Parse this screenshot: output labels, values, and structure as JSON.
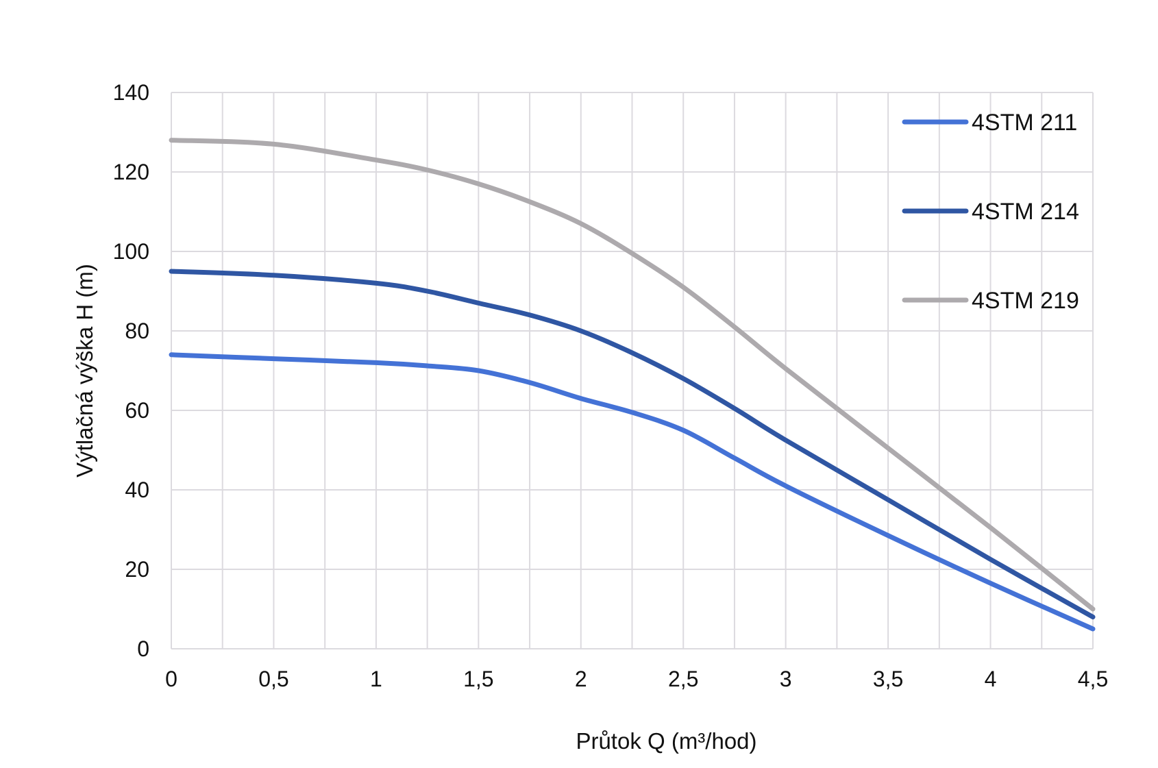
{
  "chart_data": {
    "type": "line",
    "title": "",
    "xlabel": "Průtok Q (m³/hod)",
    "ylabel": "Výtlačná výška H (m)",
    "xlim": [
      0,
      4.5
    ],
    "ylim": [
      0,
      140
    ],
    "x_ticks": [
      0,
      0.5,
      1,
      1.5,
      2,
      2.5,
      3,
      3.5,
      4,
      4.5
    ],
    "x_tick_labels": [
      "0",
      "0,5",
      "1",
      "1,5",
      "2",
      "2,5",
      "3",
      "3,5",
      "4",
      "4,5"
    ],
    "y_ticks": [
      0,
      20,
      40,
      60,
      80,
      100,
      120,
      140
    ],
    "y_tick_labels": [
      "0",
      "20",
      "40",
      "60",
      "80",
      "100",
      "120",
      "140"
    ],
    "grid": true,
    "legend_position": "top-right",
    "series": [
      {
        "name": "4STM 211",
        "color": "#4472d6",
        "x": [
          0,
          0.5,
          1,
          1.25,
          1.5,
          1.75,
          2,
          2.25,
          2.5,
          2.75,
          3,
          3.5,
          4,
          4.5
        ],
        "y": [
          74,
          73,
          72,
          71.2,
          70,
          67,
          63,
          59.5,
          55,
          48,
          41,
          28.5,
          16.5,
          5
        ]
      },
      {
        "name": "4STM 214",
        "color": "#2f56a3",
        "x": [
          0,
          0.5,
          1,
          1.25,
          1.5,
          1.75,
          2,
          2.25,
          2.5,
          2.75,
          3,
          3.5,
          4,
          4.5
        ],
        "y": [
          95,
          94,
          92,
          90,
          87,
          84,
          80,
          74.5,
          68,
          60.5,
          52.5,
          37.5,
          22.5,
          8
        ]
      },
      {
        "name": "4STM 219",
        "color": "#adaaad",
        "x": [
          0,
          0.5,
          1,
          1.25,
          1.5,
          1.75,
          2,
          2.25,
          2.5,
          2.75,
          3,
          3.5,
          4,
          4.5
        ],
        "y": [
          128,
          127,
          123,
          120.5,
          117,
          112.5,
          107,
          99.5,
          91,
          81,
          70.5,
          50.5,
          30.5,
          10
        ]
      }
    ]
  }
}
